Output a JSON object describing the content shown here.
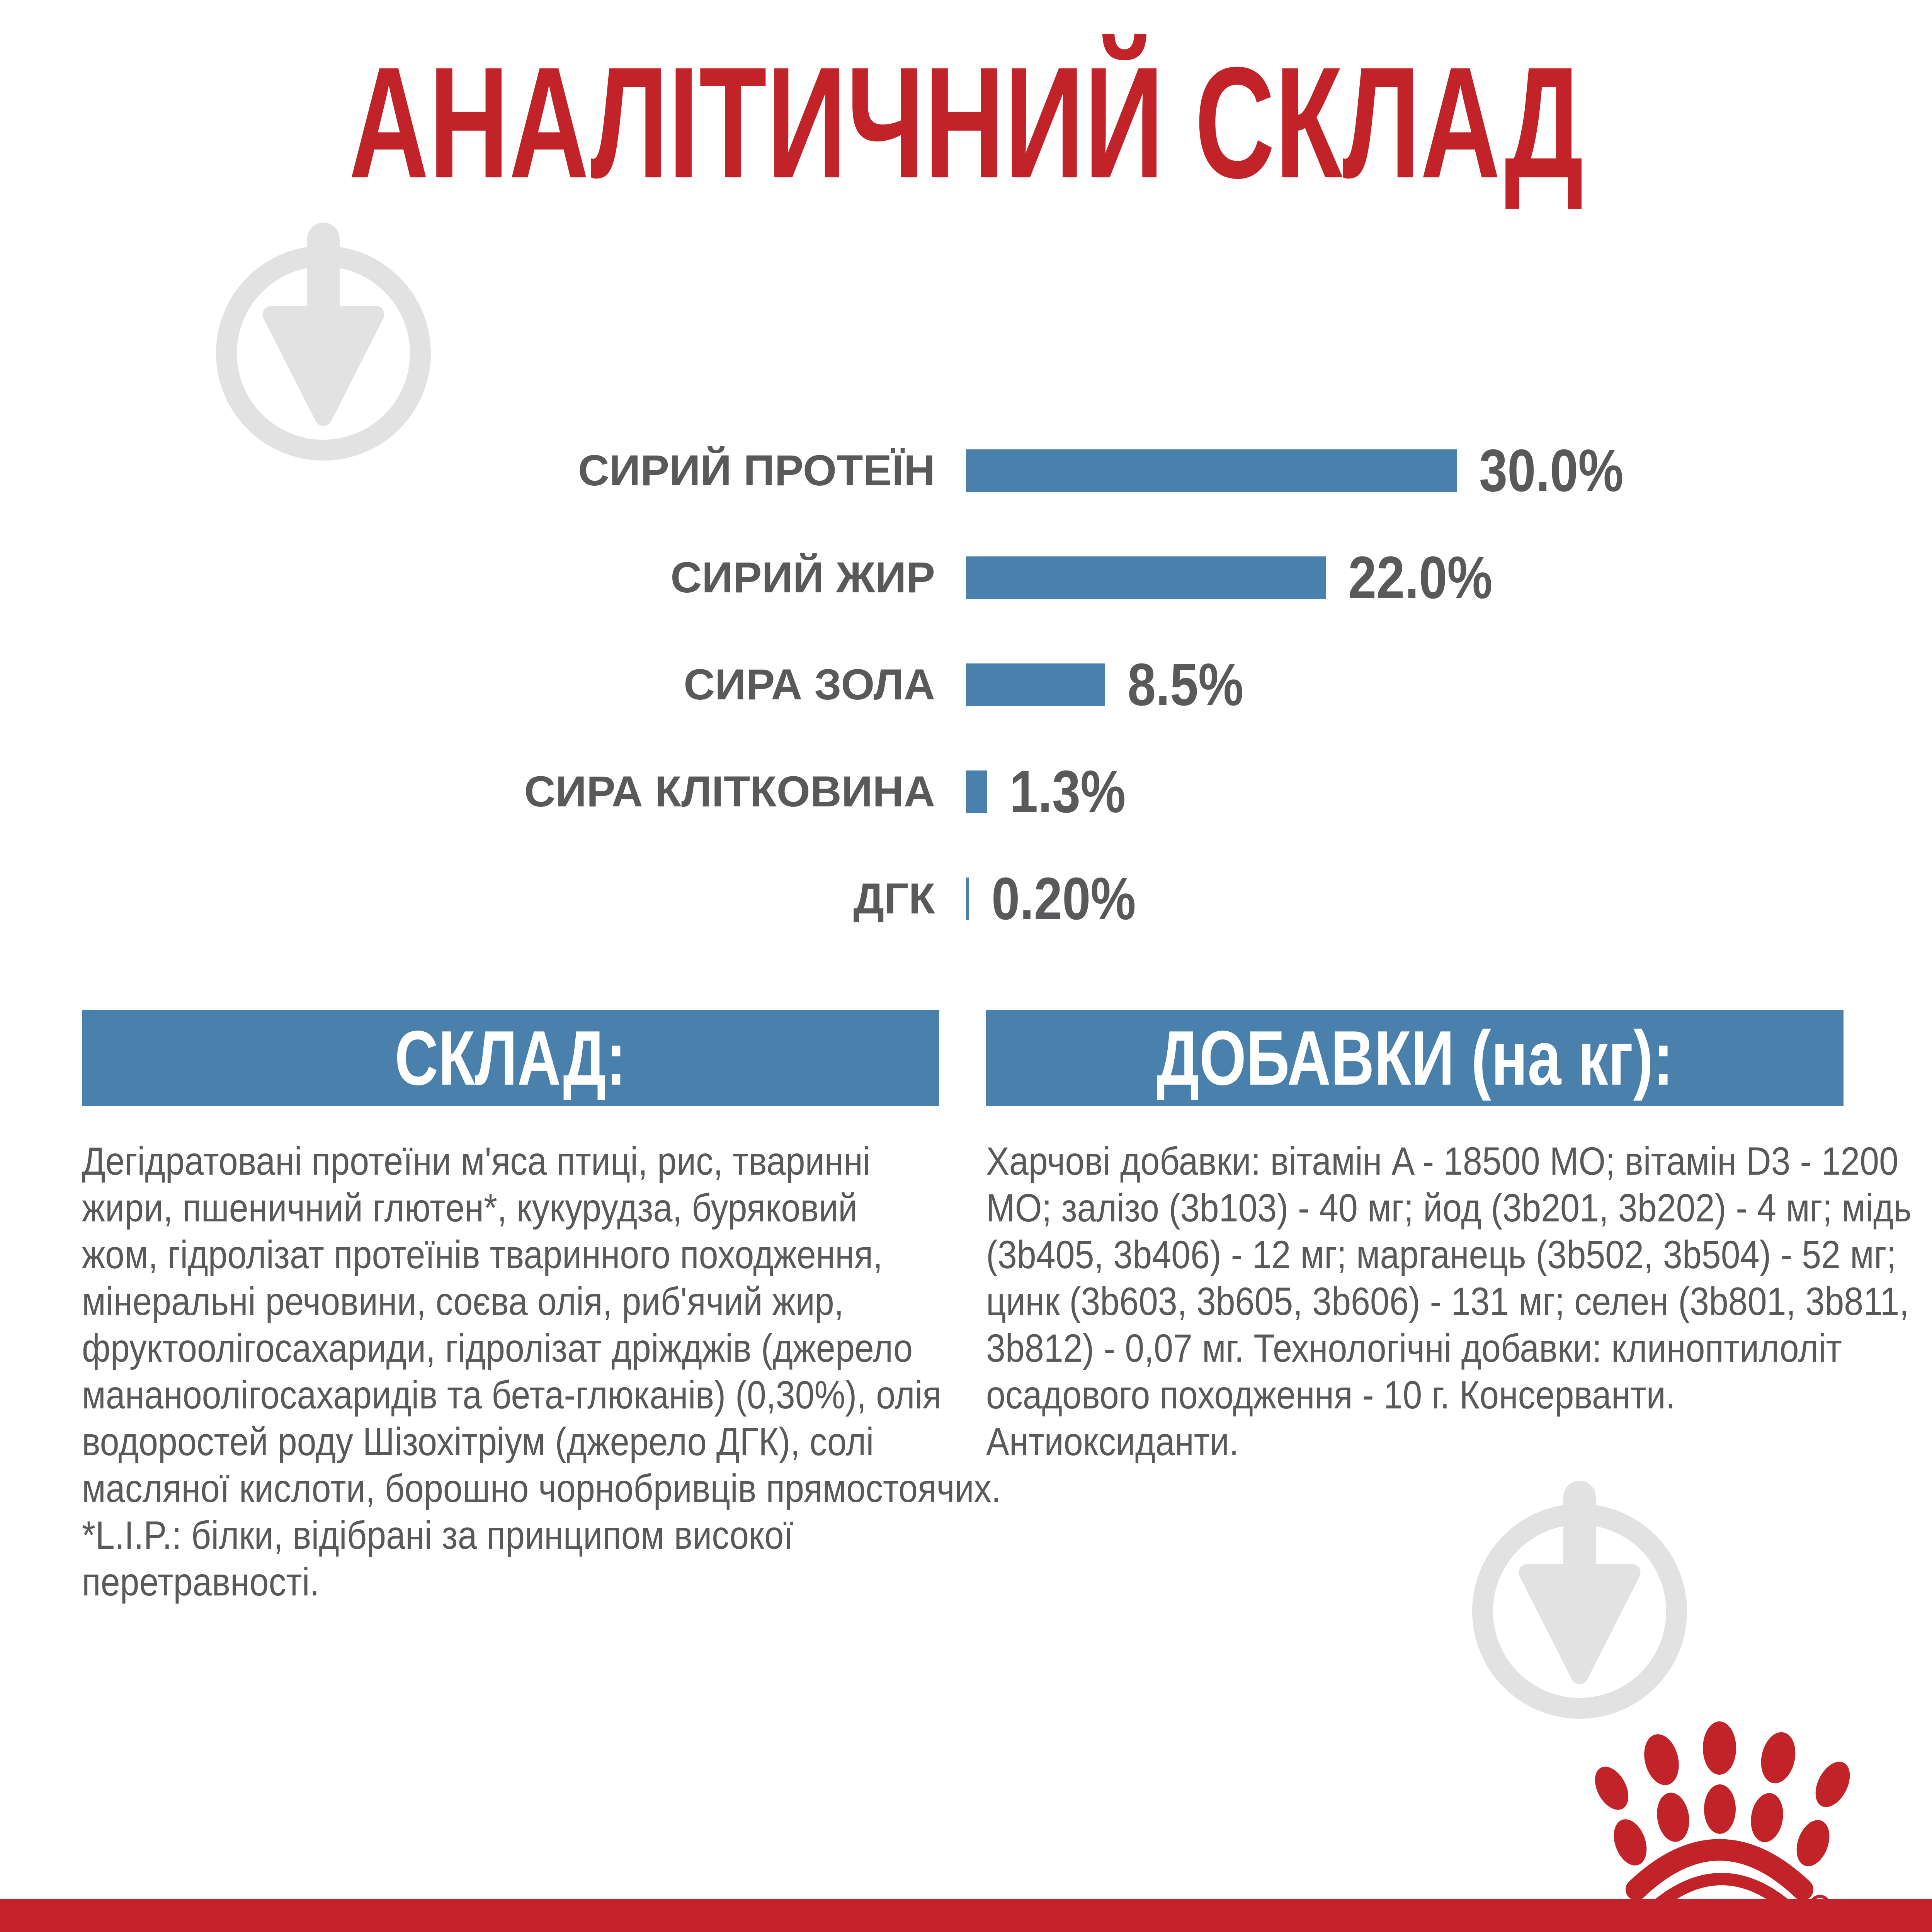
{
  "title": "АНАЛІТИЧНИЙ СКЛАД",
  "chart_data": {
    "type": "bar",
    "orientation": "horizontal",
    "categories": [
      "СИРИЙ ПРОТЕЇН",
      "СИРИЙ ЖИР",
      "СИРА ЗОЛА",
      "СИРА КЛІТКОВИНА",
      "ДГК"
    ],
    "values": [
      30.0,
      22.0,
      8.5,
      1.3,
      0.2
    ],
    "value_labels": [
      "30.0%",
      "22.0%",
      "8.5%",
      "1.3%",
      "0.20%"
    ],
    "unit": "%",
    "xlim": [
      0,
      30
    ],
    "grid": false,
    "legend": false,
    "bar_color": "#4a80ac",
    "label_color": "#58595b"
  },
  "sections": {
    "composition": {
      "header": "СКЛАД:",
      "body_lines": [
        "Дегідратовані протеїни м'яса птиці, рис, тваринні",
        "жири, пшеничний глютен*, кукурудза, буряковий",
        "жом, гідролізат протеїнів тваринного походження,",
        "мінеральні речовини, соєва олія, риб'ячий жир,",
        "фруктоолігосахариди, гідролізат дріжджів (джерело",
        "мананоолігосахаридів та бета-глюканів) (0,30%), олія",
        "водоростей роду Шізохітріум (джерело ДГК), солі",
        "масляної кислоти, борошно чорнобривців прямостоячих.",
        "*L.I.P.: білки, відібрані за принципом високої",
        "перетравності."
      ]
    },
    "additives": {
      "header": "ДОБАВКИ (на кг):",
      "body_lines": [
        "Харчові добавки: вітамін A - 18500 МО; вітамін D3 - 1200",
        "МО; залізо (3b103) - 40 мг; йод (3b201, 3b202) - 4 мг; мідь",
        "(3b405, 3b406) - 12 мг; марганець (3b502, 3b504) - 52 мг;",
        "цинк (3b603, 3b605, 3b606) - 131 мг; селен (3b801, 3b811,",
        "3b812) - 0,07 мг. Технологічні добавки: клиноптилоліт",
        "осадового походження - 10 г. Консерванти.",
        "Антиоксиданти."
      ]
    }
  },
  "brand": {
    "logo": "royal-canin-crown",
    "registered_mark": "®"
  },
  "icons": {
    "watermark": "trowel-in-circle-watermark-icon"
  },
  "colors": {
    "accent_red": "#c22329",
    "bar_blue": "#4a80ac",
    "text_gray": "#58595b",
    "header_box_blue": "#4a80ac",
    "watermark_gray": "#e2e2e2",
    "background": "#ffffff"
  }
}
